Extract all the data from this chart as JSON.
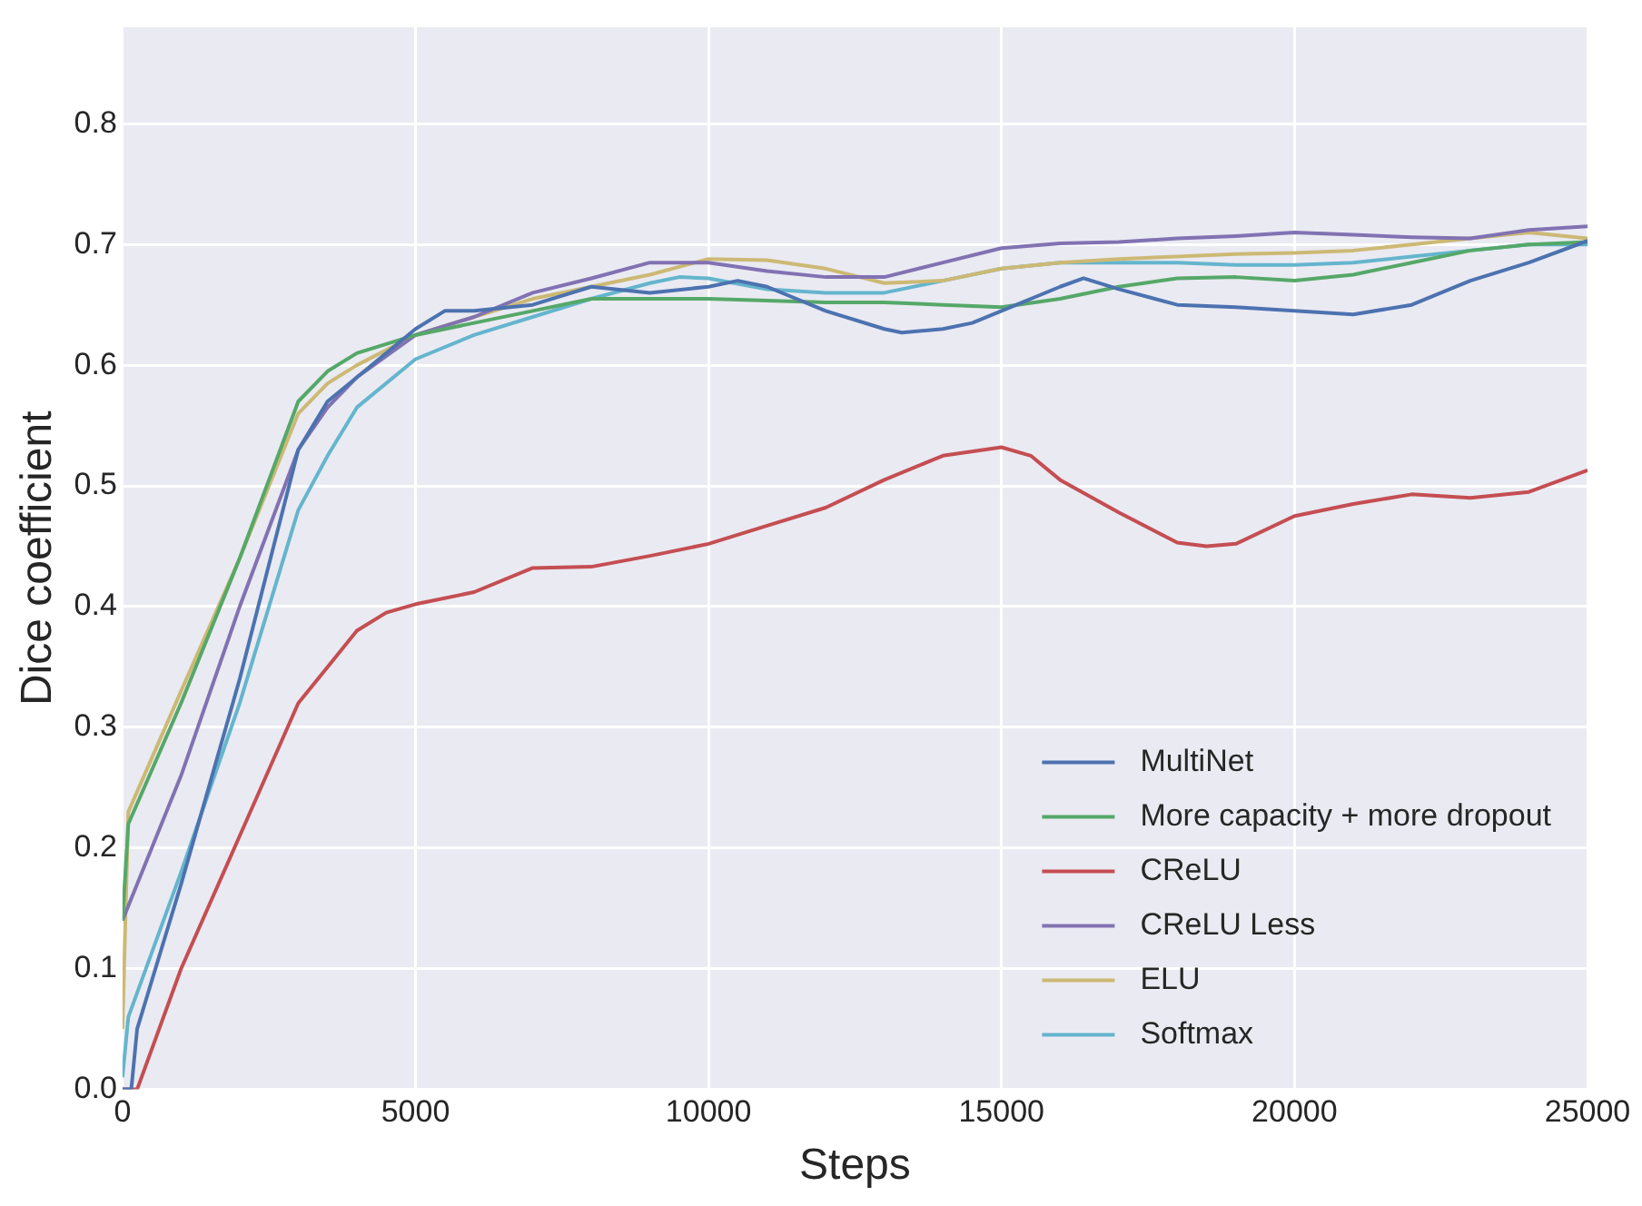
{
  "chart_data": {
    "type": "line",
    "xlabel": "Steps",
    "ylabel": "Dice coefficient",
    "xlim": [
      0,
      25000
    ],
    "ylim": [
      0,
      0.88
    ],
    "xticks": [
      0,
      5000,
      10000,
      15000,
      20000,
      25000
    ],
    "yticks": [
      {
        "value": 0,
        "label": "0.0"
      },
      {
        "value": 0.1,
        "label": "0.1"
      },
      {
        "value": 0.2,
        "label": "0.2"
      },
      {
        "value": 0.3,
        "label": "0.3"
      },
      {
        "value": 0.4,
        "label": "0.4"
      },
      {
        "value": 0.5,
        "label": "0.5"
      },
      {
        "value": 0.6,
        "label": "0.6"
      },
      {
        "value": 0.7,
        "label": "0.7"
      },
      {
        "value": 0.8,
        "label": "0.8"
      }
    ],
    "grid": true,
    "legend": "bottom right",
    "marker": "none",
    "line_style": "solid",
    "series": [
      {
        "name": "MultiNet",
        "color": "#4c72b0",
        "x": [
          0,
          150,
          250,
          1000,
          2000,
          3000,
          3500,
          4000,
          5000,
          5500,
          6000,
          7000,
          8000,
          9000,
          10000,
          10500,
          11000,
          12000,
          13000,
          13300,
          14000,
          14500,
          15000,
          16000,
          16400,
          17000,
          18000,
          19000,
          20000,
          21000,
          22000,
          23000,
          24000,
          25000
        ],
        "values": [
          0,
          0,
          0.05,
          0.17,
          0.34,
          0.53,
          0.57,
          0.59,
          0.63,
          0.645,
          0.645,
          0.65,
          0.665,
          0.66,
          0.665,
          0.67,
          0.665,
          0.645,
          0.63,
          0.627,
          0.63,
          0.635,
          0.645,
          0.665,
          0.672,
          0.663,
          0.65,
          0.648,
          0.645,
          0.642,
          0.65,
          0.67,
          0.685,
          0.703
        ]
      },
      {
        "name": "More capacity + more dropout",
        "color": "#55a868",
        "x": [
          0,
          100,
          1000,
          2000,
          3000,
          3500,
          4000,
          5000,
          6000,
          7000,
          8000,
          10000,
          12000,
          13000,
          14000,
          15000,
          16000,
          17000,
          18000,
          19000,
          20000,
          21000,
          22000,
          23000,
          24000,
          25000
        ],
        "values": [
          0.14,
          0.22,
          0.32,
          0.44,
          0.57,
          0.595,
          0.61,
          0.625,
          0.635,
          0.645,
          0.655,
          0.655,
          0.652,
          0.652,
          0.65,
          0.648,
          0.655,
          0.665,
          0.672,
          0.673,
          0.67,
          0.675,
          0.685,
          0.695,
          0.7,
          0.702
        ]
      },
      {
        "name": "CReLU",
        "color": "#c44e52",
        "x": [
          0,
          250,
          1000,
          2000,
          3000,
          3500,
          4000,
          4500,
          5000,
          6000,
          7000,
          8000,
          9000,
          10000,
          11000,
          12000,
          13000,
          14000,
          15000,
          15500,
          16000,
          17000,
          18000,
          18500,
          19000,
          20000,
          21000,
          22000,
          23000,
          24000,
          25000
        ],
        "values": [
          0,
          0,
          0.1,
          0.21,
          0.32,
          0.35,
          0.38,
          0.395,
          0.402,
          0.412,
          0.432,
          0.433,
          0.442,
          0.452,
          0.467,
          0.482,
          0.505,
          0.525,
          0.532,
          0.525,
          0.505,
          0.478,
          0.453,
          0.45,
          0.452,
          0.475,
          0.485,
          0.493,
          0.49,
          0.495,
          0.513
        ]
      },
      {
        "name": "CReLU Less",
        "color": "#8172b2",
        "x": [
          0,
          1000,
          2000,
          3000,
          3500,
          4000,
          5000,
          6000,
          7000,
          8000,
          9000,
          10000,
          11000,
          12000,
          13000,
          14000,
          15000,
          16000,
          17000,
          18000,
          19000,
          20000,
          21000,
          22000,
          23000,
          24000,
          25000
        ],
        "values": [
          0.14,
          0.26,
          0.4,
          0.53,
          0.565,
          0.59,
          0.625,
          0.64,
          0.66,
          0.672,
          0.685,
          0.685,
          0.678,
          0.673,
          0.673,
          0.685,
          0.697,
          0.701,
          0.702,
          0.705,
          0.707,
          0.71,
          0.708,
          0.706,
          0.705,
          0.712,
          0.715
        ]
      },
      {
        "name": "ELU",
        "color": "#ccb974",
        "x": [
          0,
          100,
          1000,
          2000,
          3000,
          3500,
          4000,
          5000,
          6000,
          7000,
          8000,
          9000,
          10000,
          11000,
          12000,
          13000,
          14000,
          15000,
          16000,
          17000,
          18000,
          19000,
          20000,
          21000,
          22000,
          23000,
          24000,
          25000
        ],
        "values": [
          0.05,
          0.23,
          0.33,
          0.44,
          0.56,
          0.585,
          0.6,
          0.625,
          0.64,
          0.655,
          0.665,
          0.675,
          0.688,
          0.687,
          0.68,
          0.668,
          0.67,
          0.68,
          0.685,
          0.688,
          0.69,
          0.692,
          0.693,
          0.695,
          0.7,
          0.705,
          0.71,
          0.705
        ]
      },
      {
        "name": "Softmax",
        "color": "#64b5cd",
        "x": [
          0,
          100,
          1000,
          2000,
          3000,
          3500,
          4000,
          5000,
          6000,
          7000,
          8000,
          9000,
          9500,
          10000,
          11000,
          12000,
          13000,
          14000,
          15000,
          16000,
          17000,
          18000,
          19000,
          20000,
          21000,
          22000,
          23000,
          24000,
          25000
        ],
        "values": [
          0.01,
          0.06,
          0.18,
          0.32,
          0.48,
          0.525,
          0.565,
          0.605,
          0.625,
          0.64,
          0.655,
          0.668,
          0.673,
          0.672,
          0.663,
          0.66,
          0.66,
          0.67,
          0.68,
          0.685,
          0.685,
          0.685,
          0.683,
          0.683,
          0.685,
          0.69,
          0.695,
          0.7,
          0.7
        ]
      }
    ]
  }
}
